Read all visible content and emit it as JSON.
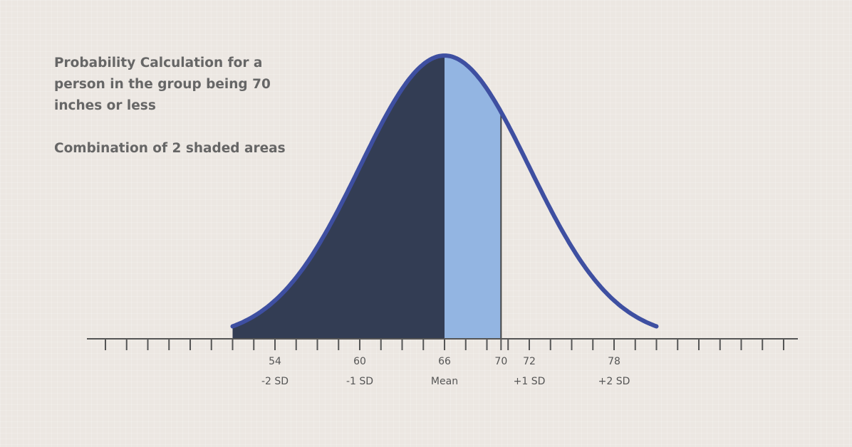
{
  "chart_data": {
    "type": "area",
    "description": "Probability Calculation for a person in the group being 70 inches or less",
    "subtitle": "Combination of 2 shaded areas",
    "mean": 66,
    "sd": 6,
    "xlim": [
      42,
      90
    ],
    "ylim": [
      0,
      0.0665
    ],
    "curve_range": [
      51,
      81
    ],
    "shaded_regions": [
      {
        "from": 51,
        "to": 66,
        "color": "#333d54"
      },
      {
        "from": 66,
        "to": 70,
        "color": "#93b5e2"
      }
    ],
    "marker_line_x": 70,
    "ticks": [
      {
        "value": 54,
        "label": "54",
        "sublabel": "-2 SD"
      },
      {
        "value": 60,
        "label": "60",
        "sublabel": "-1 SD"
      },
      {
        "value": 66,
        "label": "66",
        "sublabel": "Mean"
      },
      {
        "value": 70,
        "label": "70",
        "sublabel": ""
      },
      {
        "value": 72,
        "label": "72",
        "sublabel": "+1 SD"
      },
      {
        "value": 78,
        "label": "78",
        "sublabel": "+2 SD"
      }
    ],
    "minor_ticks_every": 1.5,
    "curve_color": "#3e4fa1",
    "axis_color": "#555555"
  }
}
